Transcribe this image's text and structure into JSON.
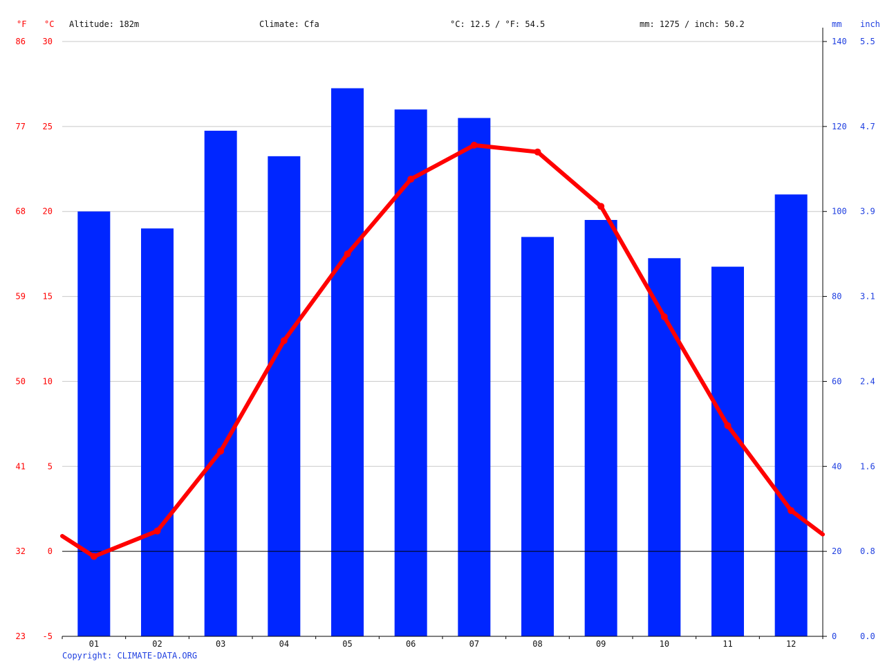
{
  "header": {
    "altitude": "Altitude: 182m",
    "climate": "Climate: Cfa",
    "avg_temp": "°C: 12.5 / °F: 54.5",
    "precip": "mm: 1275 / inch: 50.2"
  },
  "units": {
    "f": "°F",
    "c": "°C",
    "mm": "mm",
    "inch": "inch"
  },
  "copyright": "Copyright: CLIMATE-DATA.ORG",
  "colors": {
    "temp": "#ff0000",
    "precip_bar": "#0026ff",
    "axis_right": "#1f3fe0",
    "grid": "#c8c8c8"
  },
  "chart_data": {
    "type": "bar",
    "categories": [
      "01",
      "02",
      "03",
      "04",
      "05",
      "06",
      "07",
      "08",
      "09",
      "10",
      "11",
      "12"
    ],
    "series": [
      {
        "type": "bar",
        "axis": "right",
        "values": [
          100,
          96,
          119,
          113,
          129,
          124,
          122,
          94,
          98,
          89,
          87,
          104
        ]
      },
      {
        "type": "line",
        "axis": "left",
        "values": [
          -0.3,
          1.2,
          5.9,
          12.4,
          17.5,
          21.9,
          23.9,
          23.5,
          20.3,
          13.8,
          7.4,
          2.4
        ],
        "edge_start": 0.9,
        "edge_end": 1.0
      }
    ],
    "left_axis_c": {
      "ticks": [
        -5,
        0,
        5,
        10,
        15,
        20,
        25,
        30
      ],
      "ylim": [
        -5,
        30
      ]
    },
    "left_axis_f": {
      "ticks": [
        23,
        32,
        41,
        50,
        59,
        68,
        77,
        86
      ]
    },
    "right_axis_mm": {
      "ticks": [
        0,
        20,
        40,
        60,
        80,
        100,
        120,
        140
      ],
      "ylim": [
        0,
        140
      ]
    },
    "right_axis_inch": {
      "ticks": [
        "0.0",
        "0.8",
        "1.6",
        "2.4",
        "3.1",
        "3.9",
        "4.7",
        "5.5"
      ]
    },
    "grid": true,
    "zero_line": true
  }
}
